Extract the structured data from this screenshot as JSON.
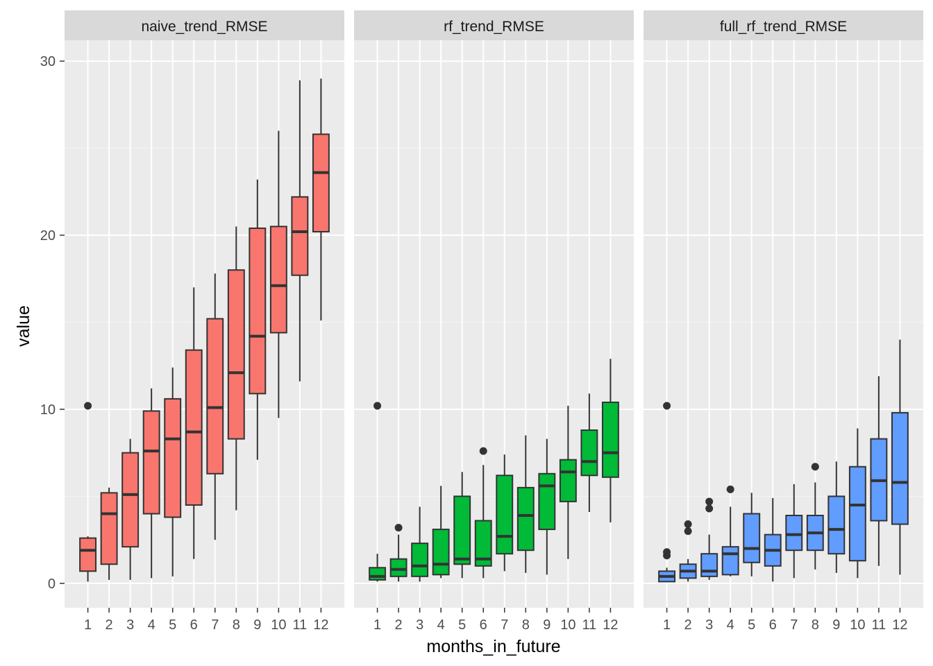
{
  "chart_data": {
    "type": "boxplot",
    "facets": [
      "naive_trend_RMSE",
      "rf_trend_RMSE",
      "full_rf_trend_RMSE"
    ],
    "categories": [
      "1",
      "2",
      "3",
      "4",
      "5",
      "6",
      "7",
      "8",
      "9",
      "10",
      "11",
      "12"
    ],
    "xlabel": "months_in_future",
    "ylabel": "value",
    "ylim": [
      -1.4,
      31.2
    ],
    "yticks": [
      "0",
      "10",
      "20",
      "30"
    ],
    "grid": true,
    "legend": "none",
    "colors": {
      "naive_trend_RMSE": "#F8766D",
      "rf_trend_RMSE": "#00BA38",
      "full_rf_trend_RMSE": "#619CFF"
    },
    "series": [
      {
        "name": "naive_trend_RMSE",
        "boxes": [
          {
            "min": 0.1,
            "q1": 0.7,
            "median": 1.9,
            "q3": 2.6,
            "max": 2.7,
            "outliers": [
              10.2
            ]
          },
          {
            "min": 0.2,
            "q1": 1.1,
            "median": 4.0,
            "q3": 5.2,
            "max": 5.5,
            "outliers": []
          },
          {
            "min": 0.2,
            "q1": 2.1,
            "median": 5.1,
            "q3": 7.5,
            "max": 8.3,
            "outliers": []
          },
          {
            "min": 0.3,
            "q1": 4.0,
            "median": 7.6,
            "q3": 9.9,
            "max": 11.2,
            "outliers": []
          },
          {
            "min": 0.4,
            "q1": 3.8,
            "median": 8.3,
            "q3": 10.6,
            "max": 12.4,
            "outliers": []
          },
          {
            "min": 1.4,
            "q1": 4.5,
            "median": 8.7,
            "q3": 13.4,
            "max": 17.0,
            "outliers": []
          },
          {
            "min": 2.5,
            "q1": 6.3,
            "median": 10.1,
            "q3": 15.2,
            "max": 17.8,
            "outliers": []
          },
          {
            "min": 4.2,
            "q1": 8.3,
            "median": 12.1,
            "q3": 18.0,
            "max": 20.5,
            "outliers": []
          },
          {
            "min": 7.1,
            "q1": 10.9,
            "median": 14.2,
            "q3": 20.4,
            "max": 23.2,
            "outliers": []
          },
          {
            "min": 9.5,
            "q1": 14.4,
            "median": 17.1,
            "q3": 20.5,
            "max": 26.0,
            "outliers": []
          },
          {
            "min": 11.6,
            "q1": 17.7,
            "median": 20.2,
            "q3": 22.2,
            "max": 28.9,
            "outliers": []
          },
          {
            "min": 15.1,
            "q1": 20.2,
            "median": 23.6,
            "q3": 25.8,
            "max": 29.0,
            "outliers": []
          }
        ]
      },
      {
        "name": "rf_trend_RMSE",
        "boxes": [
          {
            "min": 0.1,
            "q1": 0.2,
            "median": 0.4,
            "q3": 0.9,
            "max": 1.7,
            "outliers": [
              10.2
            ]
          },
          {
            "min": 0.1,
            "q1": 0.4,
            "median": 0.8,
            "q3": 1.4,
            "max": 2.8,
            "outliers": [
              3.2
            ]
          },
          {
            "min": 0.1,
            "q1": 0.4,
            "median": 1.0,
            "q3": 2.3,
            "max": 4.4,
            "outliers": []
          },
          {
            "min": 0.3,
            "q1": 0.5,
            "median": 1.1,
            "q3": 3.1,
            "max": 5.6,
            "outliers": []
          },
          {
            "min": 0.3,
            "q1": 1.1,
            "median": 1.4,
            "q3": 5.0,
            "max": 6.4,
            "outliers": []
          },
          {
            "min": 0.3,
            "q1": 1.0,
            "median": 1.4,
            "q3": 3.6,
            "max": 6.8,
            "outliers": [
              7.6
            ]
          },
          {
            "min": 0.7,
            "q1": 1.7,
            "median": 2.7,
            "q3": 6.2,
            "max": 7.4,
            "outliers": []
          },
          {
            "min": 0.6,
            "q1": 1.9,
            "median": 3.9,
            "q3": 5.5,
            "max": 8.5,
            "outliers": []
          },
          {
            "min": 0.5,
            "q1": 3.1,
            "median": 5.6,
            "q3": 6.3,
            "max": 8.3,
            "outliers": []
          },
          {
            "min": 1.4,
            "q1": 4.7,
            "median": 6.4,
            "q3": 7.1,
            "max": 10.2,
            "outliers": []
          },
          {
            "min": 4.1,
            "q1": 6.2,
            "median": 7.0,
            "q3": 8.8,
            "max": 10.9,
            "outliers": []
          },
          {
            "min": 3.5,
            "q1": 6.1,
            "median": 7.5,
            "q3": 10.4,
            "max": 12.9,
            "outliers": []
          }
        ]
      },
      {
        "name": "full_rf_trend_RMSE",
        "boxes": [
          {
            "min": 0.1,
            "q1": 0.1,
            "median": 0.4,
            "q3": 0.7,
            "max": 0.9,
            "outliers": [
              1.6,
              1.8,
              10.2
            ]
          },
          {
            "min": 0.1,
            "q1": 0.3,
            "median": 0.7,
            "q3": 1.1,
            "max": 1.4,
            "outliers": [
              3.0,
              3.4
            ]
          },
          {
            "min": 0.2,
            "q1": 0.4,
            "median": 0.7,
            "q3": 1.7,
            "max": 2.8,
            "outliers": [
              4.3,
              4.7
            ]
          },
          {
            "min": 0.4,
            "q1": 0.5,
            "median": 1.7,
            "q3": 2.1,
            "max": 4.4,
            "outliers": [
              5.4
            ]
          },
          {
            "min": 0.4,
            "q1": 1.2,
            "median": 2.0,
            "q3": 4.0,
            "max": 5.2,
            "outliers": []
          },
          {
            "min": 0.1,
            "q1": 1.0,
            "median": 1.9,
            "q3": 2.8,
            "max": 4.9,
            "outliers": []
          },
          {
            "min": 0.3,
            "q1": 1.9,
            "median": 2.8,
            "q3": 3.9,
            "max": 5.7,
            "outliers": []
          },
          {
            "min": 0.8,
            "q1": 1.9,
            "median": 2.9,
            "q3": 3.9,
            "max": 5.8,
            "outliers": [
              6.7
            ]
          },
          {
            "min": 0.6,
            "q1": 1.7,
            "median": 3.1,
            "q3": 5.0,
            "max": 7.0,
            "outliers": []
          },
          {
            "min": 0.3,
            "q1": 1.3,
            "median": 4.5,
            "q3": 6.7,
            "max": 8.9,
            "outliers": []
          },
          {
            "min": 1.0,
            "q1": 3.6,
            "median": 5.9,
            "q3": 8.3,
            "max": 11.9,
            "outliers": []
          },
          {
            "min": 0.5,
            "q1": 3.4,
            "median": 5.8,
            "q3": 9.8,
            "max": 14.0,
            "outliers": []
          }
        ]
      }
    ]
  }
}
